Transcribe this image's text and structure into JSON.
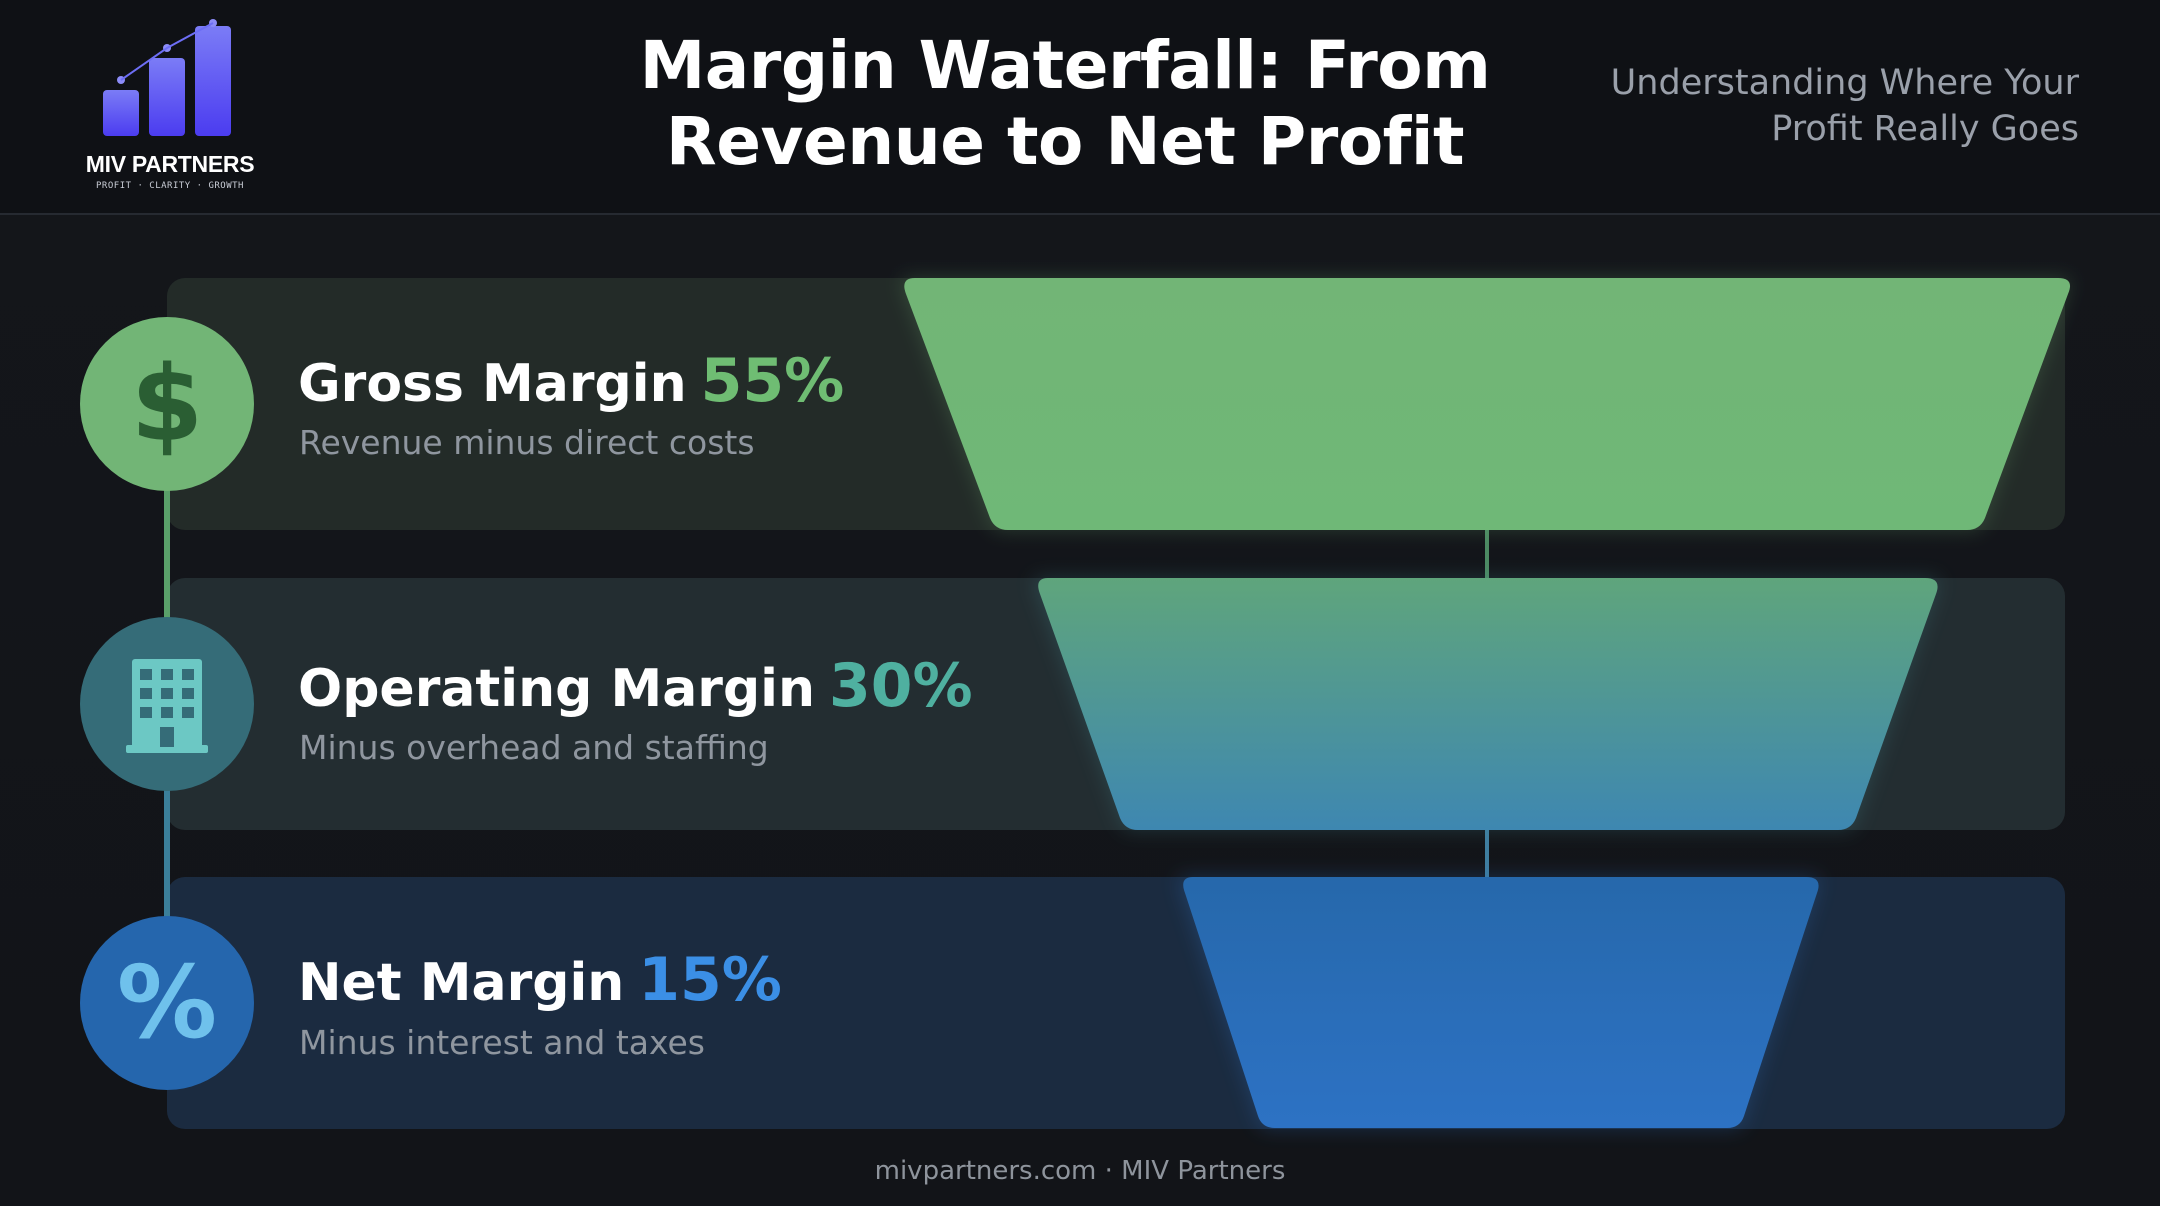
{
  "brand": {
    "name": "MIV PARTNERS",
    "tagline": "PROFIT · CLARITY · GROWTH",
    "logo_icon": "rising-bar-chart-icon",
    "logo_color_top": "#7b7cf6",
    "logo_color_bottom": "#4b3cf0"
  },
  "header": {
    "title": "Margin Waterfall: From Revenue to Net Profit",
    "subtitle": "Understanding Where Your Profit Really Goes"
  },
  "stages": [
    {
      "label": "Gross Margin",
      "percent_label": "55%",
      "value": 55,
      "description": "Revenue minus direct costs",
      "icon": "dollar-icon",
      "color": "#72b576"
    },
    {
      "label": "Operating Margin",
      "percent_label": "30%",
      "value": 30,
      "description": "Minus overhead and staffing",
      "icon": "building-icon",
      "color": "#3f9a8c"
    },
    {
      "label": "Net Margin",
      "percent_label": "15%",
      "value": 15,
      "description": "Minus interest and taxes",
      "icon": "percent-icon",
      "color": "#2566ad"
    }
  ],
  "icon_glyphs": {
    "dollar": "$",
    "percent": "%"
  },
  "footer": {
    "text": "mivpartners.com · MIV Partners"
  }
}
